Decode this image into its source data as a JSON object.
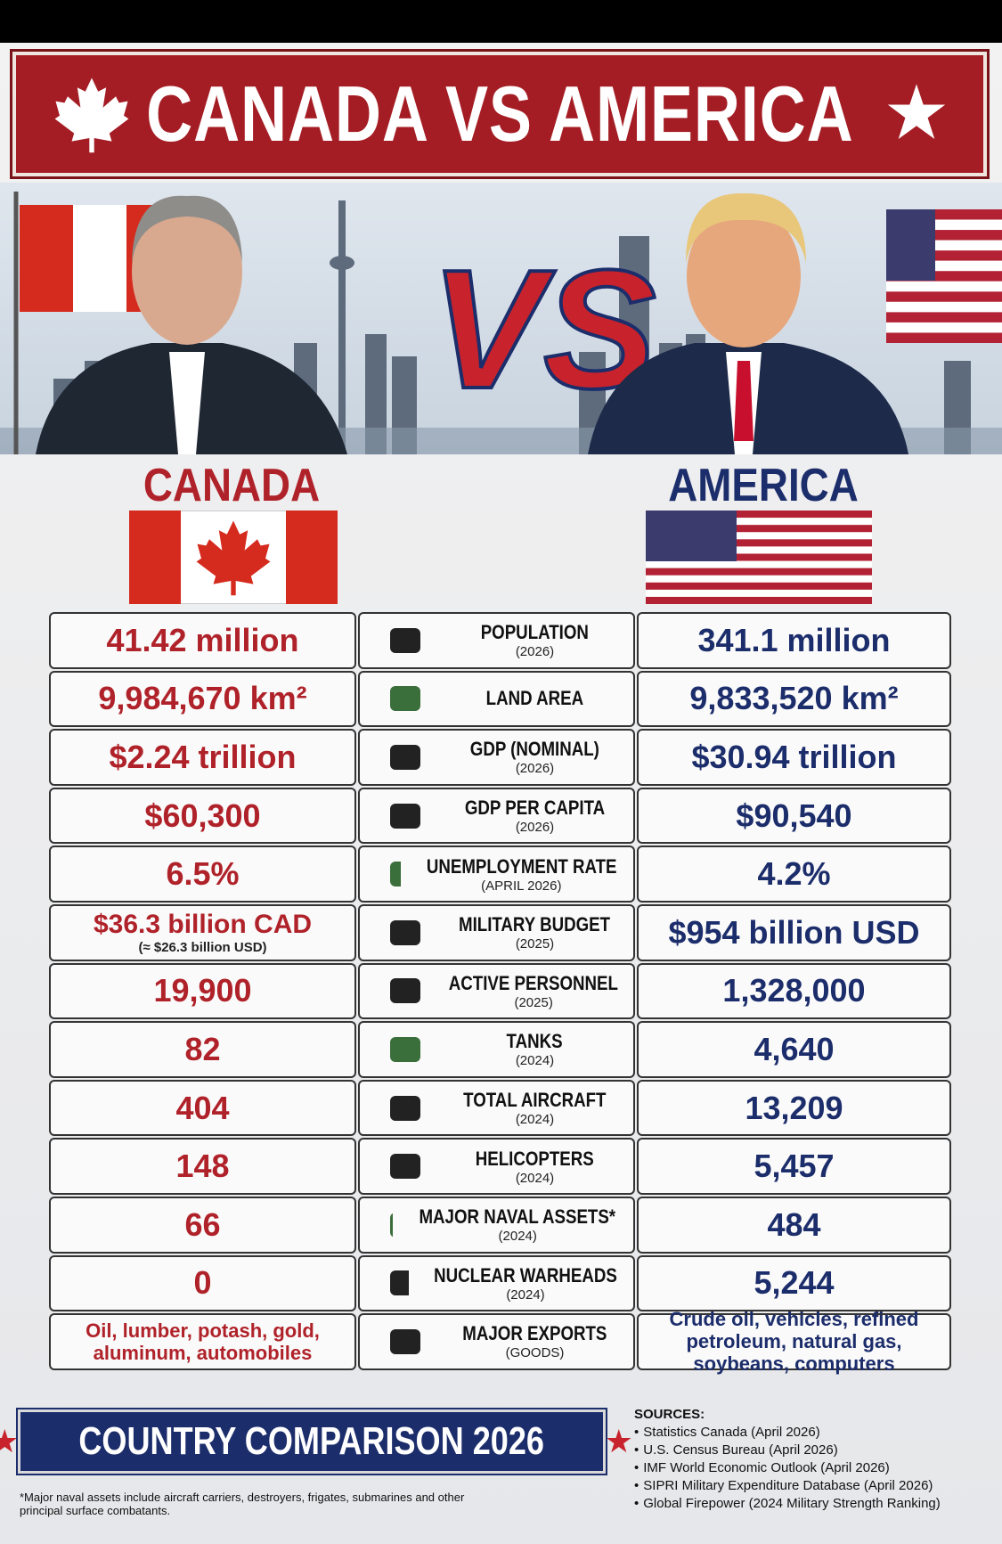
{
  "header": {
    "title": "CANADA VS AMERICA",
    "vs": "VS"
  },
  "left_country": "CANADA",
  "right_country": "AMERICA",
  "table": {
    "rows": [
      {
        "left": "41.42 million",
        "label": "POPULATION",
        "year": "(2026)",
        "right": "341.1 million"
      },
      {
        "left": "9,984,670 km²",
        "label": "LAND AREA",
        "right": "9,833,520 km²"
      },
      {
        "left": "$2.24 trillion",
        "label": "GDP (NOMINAL)",
        "year": "(2026)",
        "right": "$30.94 trillion"
      },
      {
        "left": "$60,300",
        "label": "GDP PER CAPITA",
        "year": "(2026)",
        "right": "$90,540"
      },
      {
        "left": "6.5%",
        "label": "UNEMPLOYMENT RATE",
        "year": "(APRIL 2026)",
        "right": "4.2%"
      },
      {
        "left": "$36.3 billion CAD",
        "left_note": "(≈ $26.3 billion USD)",
        "label": "MILITARY BUDGET",
        "year": "(2025)",
        "right": "$954 billion USD"
      },
      {
        "left": "19,900",
        "label": "ACTIVE PERSONNEL",
        "year": "(2025)",
        "right": "1,328,000"
      },
      {
        "left": "82",
        "label": "TANKS",
        "year": "(2024)",
        "right": "4,640"
      },
      {
        "left": "404",
        "label": "TOTAL AIRCRAFT",
        "year": "(2024)",
        "right": "13,209"
      },
      {
        "left": "148",
        "label": "HELICOPTERS",
        "year": "(2024)",
        "right": "5,457"
      },
      {
        "left": "66",
        "label": "MAJOR NAVAL ASSETS*",
        "year": "(2024)",
        "right": "484"
      },
      {
        "left": "0",
        "label": "NUCLEAR WARHEADS",
        "year": "(2024)",
        "right": "5,244"
      },
      {
        "left": "Oil, lumber, potash, gold, aluminum, automobiles",
        "label": "MAJOR EXPORTS",
        "year": "(GOODS)",
        "right": "Crude oil, vehicles, refined petroleum, natural gas, soybeans, computers"
      }
    ]
  },
  "footer": {
    "title": "COUNTRY COMPARISON 2026",
    "footnote": "*Major naval assets include aircraft carriers, destroyers, frigates, submarines and other principal surface combatants.",
    "sources_heading": "SOURCES:",
    "sources": [
      "Statistics Canada (April 2026)",
      "U.S. Census Bureau (April 2026)",
      "IMF World Economic Outlook (April 2026)",
      "SIPRI Military Expenditure Database (April 2026)",
      "Global Firepower (2024 Military Strength Ranking)"
    ]
  }
}
